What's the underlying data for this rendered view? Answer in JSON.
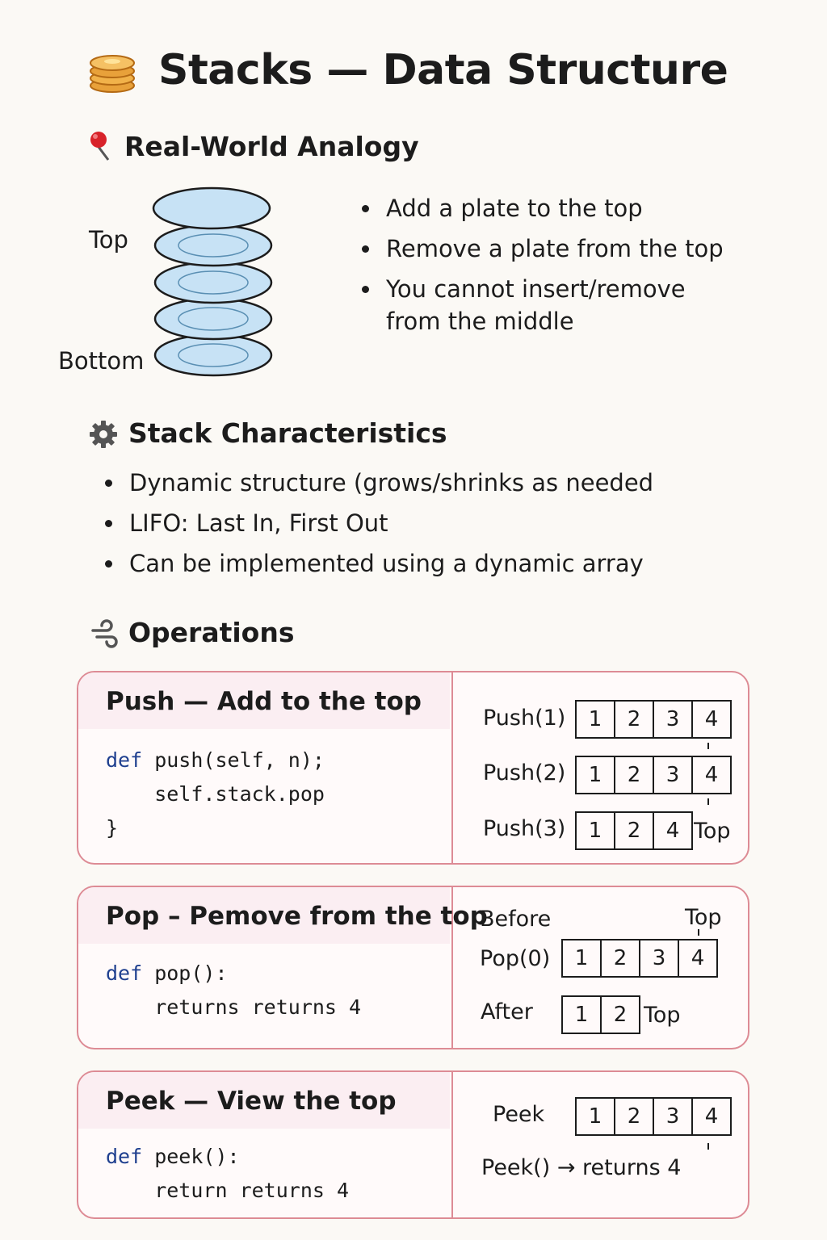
{
  "title": "Stacks — Data Structure",
  "sections": {
    "analogy": {
      "title": "Real-World Analogy",
      "top_label": "Top",
      "bottom_label": "Bottom",
      "bullets": [
        "Add a plate to the top",
        "Remove a plate from the top",
        "You cannot insert/remove from the middle"
      ]
    },
    "characteristics": {
      "title": "Stack Characteristics",
      "bullets": [
        "Dynamic structure (grows/shrinks as needed",
        "LIFO: Last In, First Out",
        "Can be implemented using a dynamic array"
      ]
    },
    "operations": {
      "title": "Operations",
      "push": {
        "heading": "Push — Add to the top",
        "code_keyword": "def",
        "code_line1": " push(self, n);",
        "code_line2": "    self.stack.pop",
        "code_line3": "}",
        "rows": [
          {
            "label": "Push(1)",
            "cells": [
              "1",
              "2",
              "3",
              "4"
            ],
            "suffix": ""
          },
          {
            "label": "Push(2)",
            "cells": [
              "1",
              "2",
              "3",
              "4"
            ],
            "suffix": ""
          },
          {
            "label": "Push(3)",
            "cells": [
              "1",
              "2",
              "4"
            ],
            "suffix": "Top"
          }
        ]
      },
      "pop": {
        "heading": "Pop – Pemove from the top",
        "code_keyword": "def",
        "code_line1": " pop():",
        "code_line2": "    returns returns 4",
        "before_label": "Before",
        "top_label": "Top",
        "pop_label": "Pop(0)",
        "pop_cells": [
          "1",
          "2",
          "3",
          "4"
        ],
        "after_label": "After",
        "after_cells": [
          "1",
          "2"
        ],
        "after_suffix": "Top"
      },
      "peek": {
        "heading": "Peek — View the top",
        "code_keyword": "def",
        "code_line1": " peek():",
        "code_line2": "    return returns 4",
        "peek_label": "Peek",
        "peek_cells": [
          "1",
          "2",
          "3",
          "4"
        ],
        "result": "Peek() → returns 4"
      }
    }
  },
  "colors": {
    "card_border": "#dd8b95",
    "card_header": "#fbeef2",
    "plate_fill": "#c7e2f5",
    "plate_stroke": "#1c1c1c",
    "code_keyword": "#1f3f8f"
  },
  "icons": {
    "title": "pancake-stack-icon",
    "analogy": "pushpin-icon",
    "characteristics": "gear-icon",
    "operations": "wind-swirl-icon"
  }
}
